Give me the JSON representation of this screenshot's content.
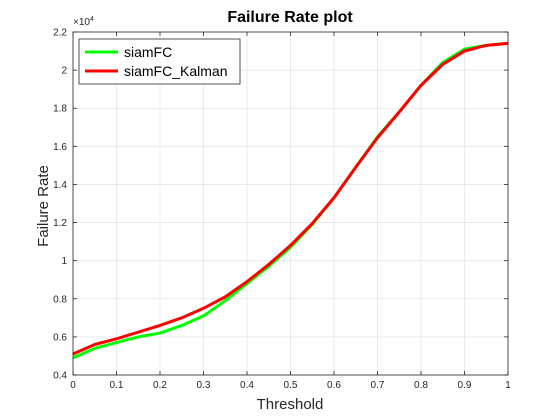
{
  "chart_data": {
    "type": "line",
    "title": "Failure Rate plot",
    "xlabel": "Threshold",
    "ylabel": "Failure Rate",
    "xlim": [
      0,
      1
    ],
    "ylim": [
      0.4,
      2.2
    ],
    "y_exponent_label": {
      "base": "×10",
      "exponent": "4"
    },
    "x_ticks": [
      0,
      0.1,
      0.2,
      0.3,
      0.4,
      0.5,
      0.6,
      0.7,
      0.8,
      0.9,
      1
    ],
    "x_tick_labels": [
      "0",
      "0.1",
      "0.2",
      "0.3",
      "0.4",
      "0.5",
      "0.6",
      "0.7",
      "0.8",
      "0.9",
      "1"
    ],
    "y_ticks": [
      0.4,
      0.6,
      0.8,
      1,
      1.2,
      1.4,
      1.6,
      1.8,
      2,
      2.2
    ],
    "y_tick_labels": [
      "0.4",
      "0.6",
      "0.8",
      "1",
      "1.2",
      "1.4",
      "1.6",
      "1.8",
      "2",
      "2.2"
    ],
    "grid": true,
    "legend_position": "top-left",
    "x": [
      0,
      0.05,
      0.1,
      0.15,
      0.2,
      0.25,
      0.3,
      0.35,
      0.4,
      0.45,
      0.5,
      0.55,
      0.6,
      0.65,
      0.7,
      0.75,
      0.8,
      0.85,
      0.9,
      0.95,
      1
    ],
    "series": [
      {
        "name": "siamFC",
        "color": "#00ff00",
        "values": [
          0.49,
          0.54,
          0.57,
          0.6,
          0.62,
          0.66,
          0.71,
          0.79,
          0.88,
          0.97,
          1.07,
          1.19,
          1.33,
          1.49,
          1.65,
          1.78,
          1.92,
          2.04,
          2.11,
          2.13,
          2.14
        ]
      },
      {
        "name": "siamFC_Kalman",
        "color": "#ff0000",
        "values": [
          0.51,
          0.56,
          0.59,
          0.625,
          0.66,
          0.7,
          0.75,
          0.81,
          0.89,
          0.98,
          1.08,
          1.195,
          1.33,
          1.49,
          1.645,
          1.78,
          1.92,
          2.03,
          2.1,
          2.13,
          2.14
        ]
      }
    ]
  }
}
